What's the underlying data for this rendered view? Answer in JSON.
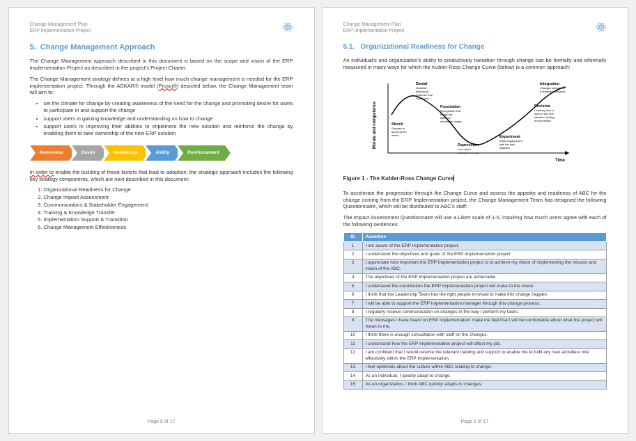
{
  "header": {
    "line1": "Change Management Plan",
    "line2": "ERP Implementation Project"
  },
  "page_left": {
    "section_num": "5.",
    "section_title": "Change Management Approach",
    "para1": "The Change Management approach described in this document is based on the scope and vision of the ERP Implementation Project as described in the project's Project Charter.",
    "para2a": "The Change Management strategy defines at a high level how much change management is needed for the ERP implementation project. Through the ADKAR® model (",
    "para2_err": "Prosci®",
    "para2b": ") depicted below, the Change Management team will aim to:",
    "bullets": [
      "set the climate for change by creating awareness of the need for the change and promoting desire for users to participate in and support the change",
      "support users in gaining knowledge and understanding on how to change",
      "support users in improving their abilities to implement the new solution and reinforce the change by enabling them to take ownership of the new ERP solution"
    ],
    "chevrons": [
      {
        "label": "Awareness",
        "color": "#ED7D31"
      },
      {
        "label": "Desire",
        "color": "#A5A5A5"
      },
      {
        "label": "Knowledge",
        "color": "#FFC000"
      },
      {
        "label": "Ability",
        "color": "#5B9BD5"
      },
      {
        "label": "Reinforcement",
        "color": "#70AD47"
      }
    ],
    "para3_err": "In order to",
    "para3": " enable the building of these factors that lead to adoption, the strategic approach includes the following key strategy components, which are next described in this document:",
    "numbered_list": [
      "Organizational Readiness for Change",
      "Change Impact Assessment",
      "Communications & Stakeholder Engagement",
      "Training & Knowledge Transfer",
      "Implementation Support & Transition",
      "Change Management Effectiveness"
    ],
    "footer": "Page 8 of 17"
  },
  "page_right": {
    "section_num": "5.1.",
    "section_title": "Organizational Readiness for Change",
    "para1": "An individual's and organization's ability to productively transition through change can be formally and informally measured in many ways for which the Kubler-Ross Change Curve (below) is a common approach:",
    "curve": {
      "y_axis": "Morale and competence",
      "x_axis": "Time",
      "labels": {
        "denial": {
          "title": "Denial",
          "sub": "Disbelief: looking for evidence that it isn't true"
        },
        "shock": {
          "title": "Shock",
          "sub": "Surprise or shock at the event"
        },
        "frustration": {
          "title": "Frustration",
          "sub": "Recognition that things are different; sometimes angry"
        },
        "depression": {
          "title": "Depression",
          "sub": "Low mood: lacking in energy"
        },
        "experiment": {
          "title": "Experiment",
          "sub": "Initial engagement with the new situation"
        },
        "decision": {
          "title": "Decision",
          "sub": "Learning how to work in the new situation: feeling more positive"
        },
        "integration": {
          "title": "Integration",
          "sub": "Changes integrated: a renewed individual"
        }
      }
    },
    "figure_caption": "Figure 1 - The Kubler-Ross Change Curve",
    "para2": "To accelerate the progression through the Change Curve and assess the appetite and readiness of ABC for the change coming from the ERP Implementation project, the Change Management Team has designed the following Questionnaire, which will be distributed to ABC's staff:",
    "para3": "The Impact Assessment Questionnaire will use a Likert scale of 1-5, inquiring how much users agree with each of the following sentences:",
    "table": {
      "headers": [
        "ID",
        "Assertion"
      ],
      "rows": [
        [
          "1",
          "I am aware of the ERP Implementation project."
        ],
        [
          "2",
          "I understand the objectives and goals of the ERP Implementation project."
        ],
        [
          "3",
          "I appreciate how important the ERP Implementation project is to achieve my vision of implementing the mission and vision of the ABC."
        ],
        [
          "4",
          "The objectives of the ERP Implementation project are achievable."
        ],
        [
          "5",
          "I understand the contribution the ERP Implementation project will make to the vision."
        ],
        [
          "6",
          "I think that the Leadership Team has the right people involved to make this change happen."
        ],
        [
          "7",
          "I will be able to support the ERP Implementation manager through this change process."
        ],
        [
          "8",
          "I regularly receive communication on changes in the way I perform my tasks."
        ],
        [
          "9",
          "The messages I have heard on ERP Implementation make me feel that I will be comfortable about what the project will mean to me."
        ],
        [
          "10",
          "I think there is enough consultation with staff on the changes."
        ],
        [
          "11",
          "I understand how the ERP Implementation project will affect my job."
        ],
        [
          "12",
          "I am confident that I would receive the relevant training and support to enable me to fulfil any new activities/ role effectively within the ERP Implementation."
        ],
        [
          "13",
          "I feel optimistic about the culture within ABC relating to change."
        ],
        [
          "14",
          "As an individual, I quickly adapt to change."
        ],
        [
          "15",
          "As an organization, I think ABC quickly adapts to changes."
        ]
      ]
    },
    "footer": "Page 9 of 17"
  }
}
